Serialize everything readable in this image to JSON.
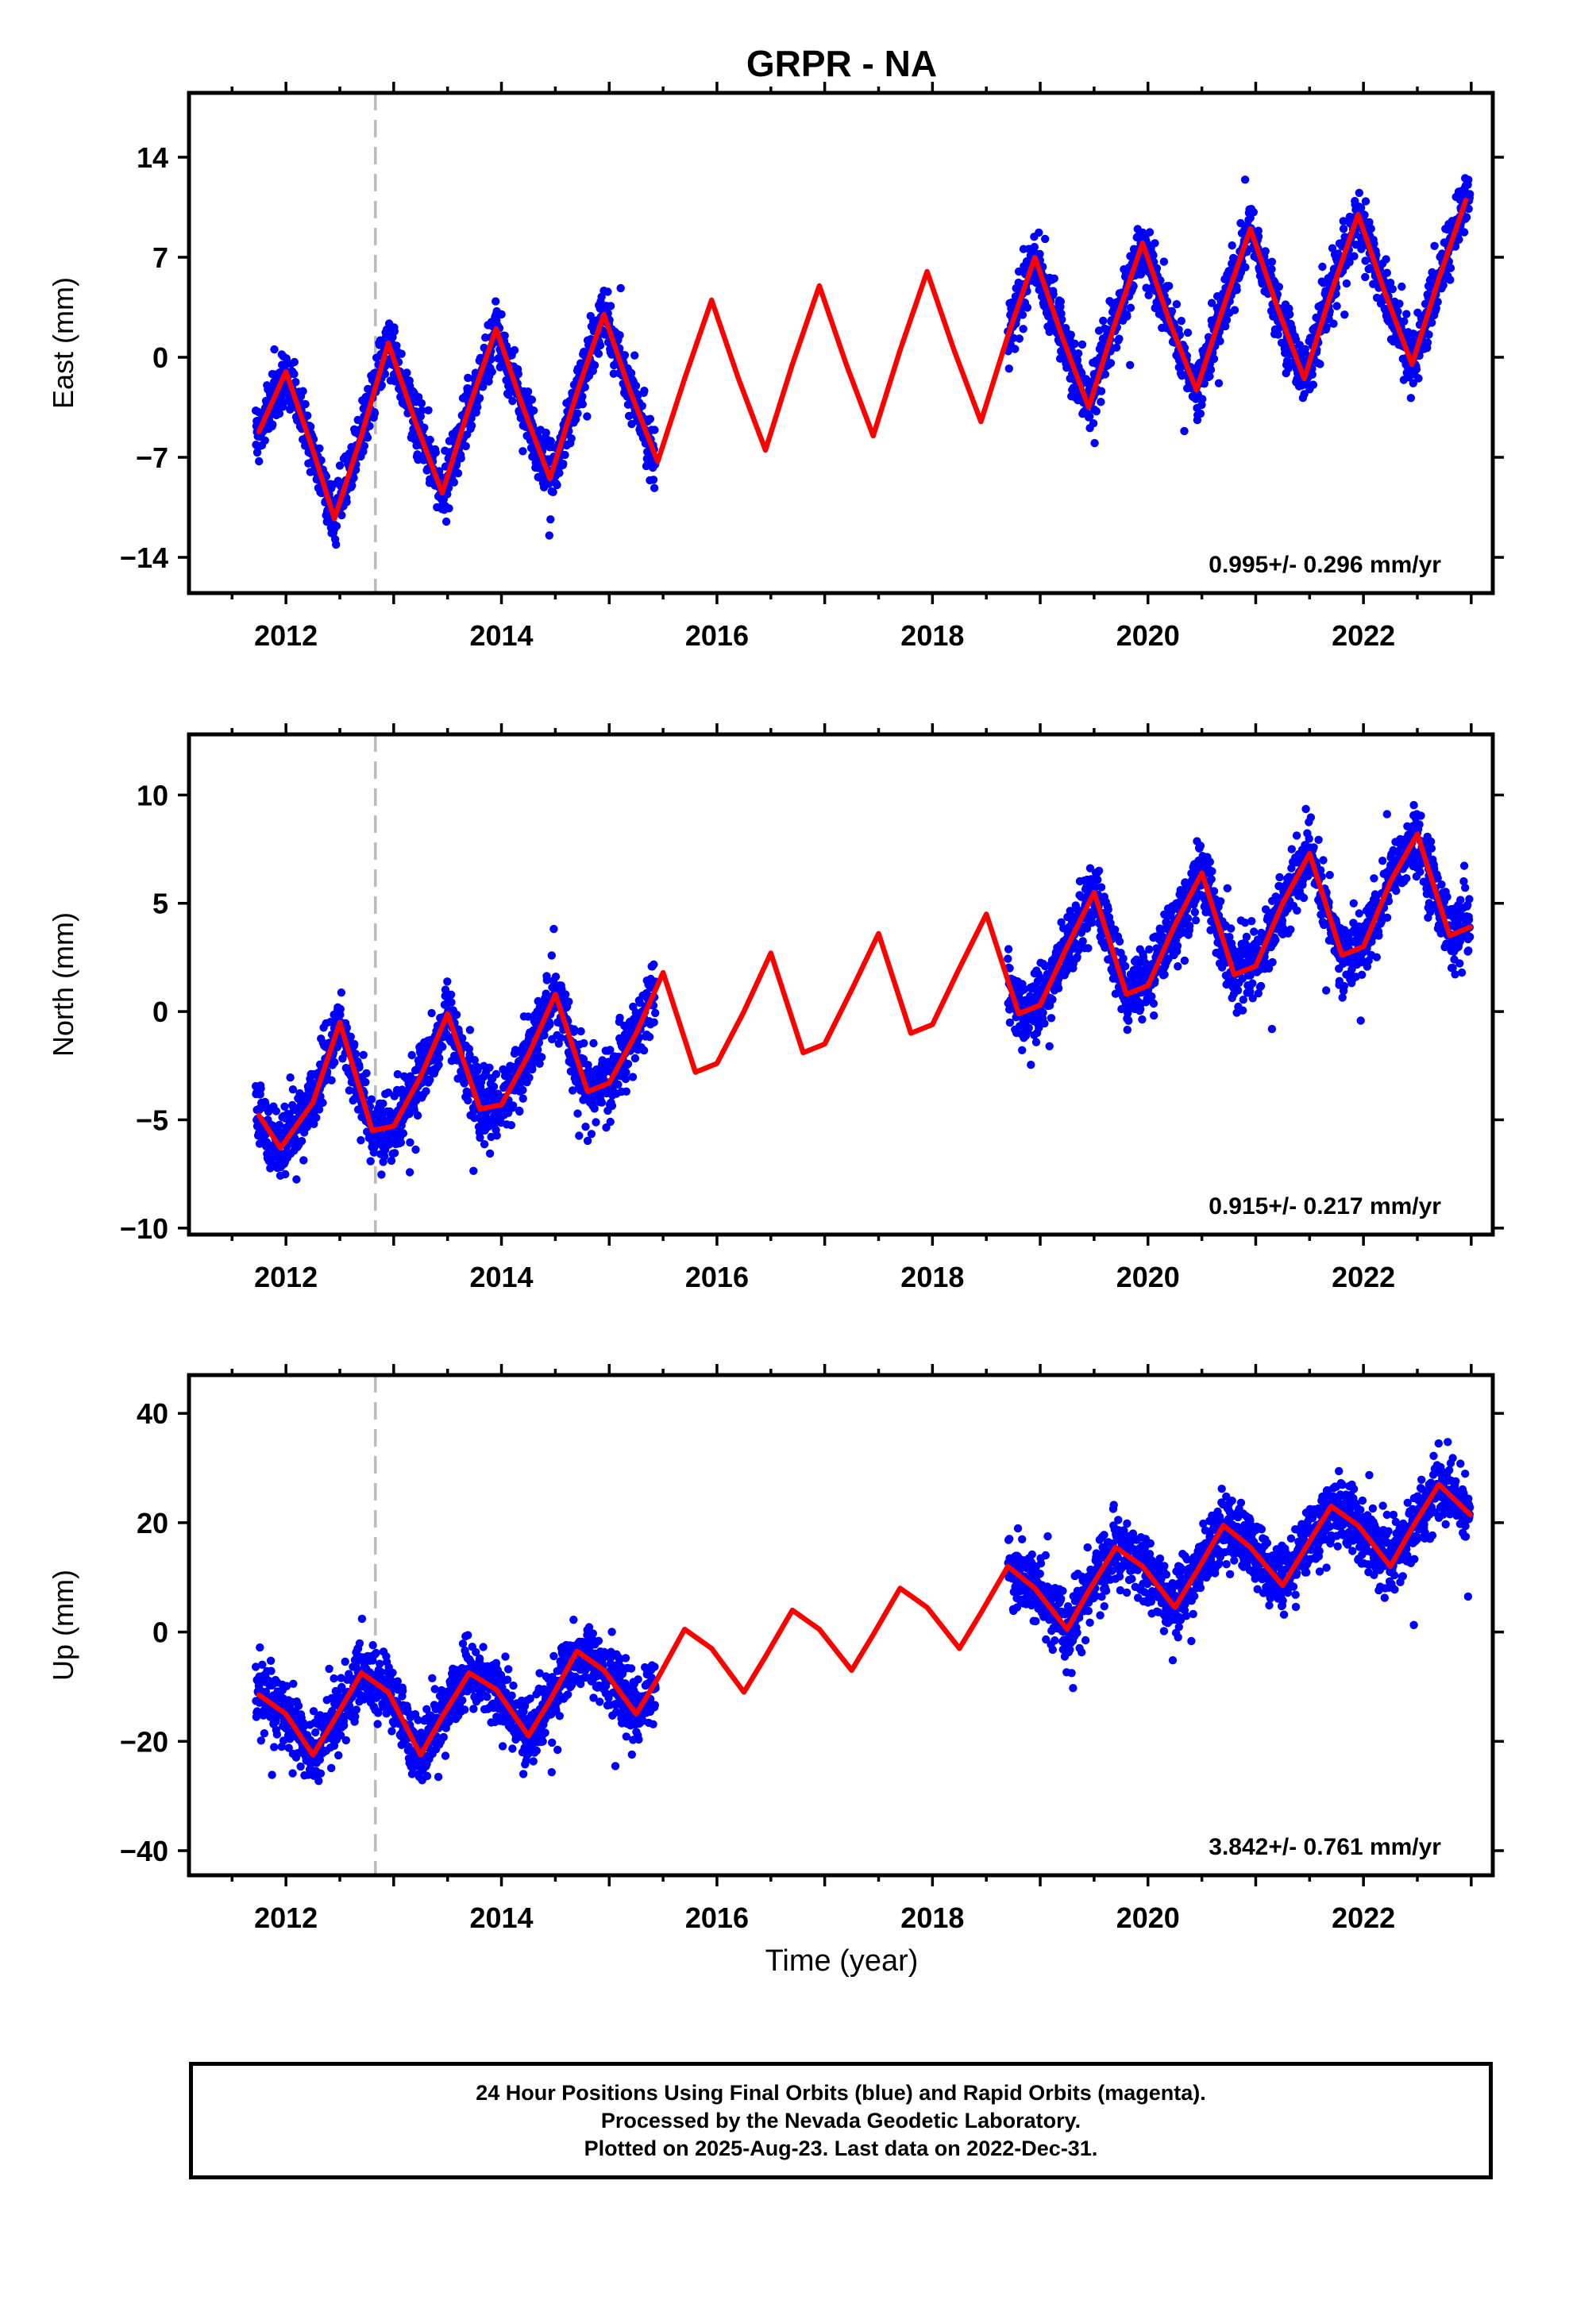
{
  "chart_data": {
    "type": "scatter",
    "title": "GRPR - NA",
    "xlabel": "Time (year)",
    "x_ticks": [
      2012,
      2014,
      2016,
      2018,
      2020,
      2022
    ],
    "x_range": [
      2011.1,
      2023.2
    ],
    "equipment_change_epoch": 2012.83,
    "data_gap": [
      2015.45,
      2018.7
    ],
    "observation_segments": [
      [
        2011.72,
        2015.43
      ],
      [
        2018.7,
        2022.99
      ]
    ],
    "colors": {
      "observations": "#0000ff",
      "model": "#ff0000",
      "equipment_change": "#bbbbbb"
    },
    "panels": [
      {
        "name": "east",
        "ylabel": "East (mm)",
        "y_ticks": [
          -14,
          -7,
          0,
          7,
          14
        ],
        "y_range": [
          -16.5,
          18.5
        ],
        "rate_label": "0.995+/- 0.296 mm/yr",
        "model_curve": {
          "x": [
            2011.75,
            2012.0,
            2012.25,
            2012.45,
            2012.7,
            2012.95,
            2013.2,
            2013.45,
            2013.7,
            2013.95,
            2014.2,
            2014.45,
            2014.7,
            2014.95,
            2015.2,
            2015.45,
            2015.7,
            2015.95,
            2016.2,
            2016.45,
            2016.7,
            2016.95,
            2017.2,
            2017.45,
            2017.7,
            2017.95,
            2018.2,
            2018.45,
            2018.7,
            2018.95,
            2019.2,
            2019.45,
            2019.7,
            2019.95,
            2020.2,
            2020.45,
            2020.7,
            2020.95,
            2021.2,
            2021.45,
            2021.7,
            2021.95,
            2022.2,
            2022.45,
            2022.7,
            2022.95
          ],
          "y": [
            -5.2,
            -1.0,
            -6.5,
            -11.3,
            -5.5,
            1.0,
            -4.5,
            -9.5,
            -3.5,
            2.0,
            -3.5,
            -8.5,
            -2.5,
            3.0,
            -2.5,
            -7.3,
            -1.5,
            4.0,
            -1.5,
            -6.5,
            -0.5,
            5.0,
            -0.5,
            -5.5,
            0.5,
            6.0,
            0.5,
            -4.5,
            1.5,
            7.0,
            1.5,
            -3.5,
            2.5,
            8.0,
            2.5,
            -2.3,
            3.5,
            9.0,
            3.5,
            -1.5,
            4.5,
            10.0,
            4.5,
            -0.5,
            5.5,
            11.0
          ]
        },
        "scatter_amplitude": 5.0,
        "scatter_noise": 1.8
      },
      {
        "name": "north",
        "ylabel": "North (mm)",
        "y_ticks": [
          -10,
          -5,
          0,
          5,
          10
        ],
        "y_range": [
          -10.3,
          12.8
        ],
        "rate_label": "0.915+/- 0.217 mm/yr",
        "model_curve": {
          "x": [
            2011.75,
            2011.95,
            2012.25,
            2012.5,
            2012.8,
            2013.0,
            2013.25,
            2013.5,
            2013.8,
            2014.0,
            2014.25,
            2014.5,
            2014.8,
            2015.0,
            2015.25,
            2015.5,
            2015.8,
            2016.0,
            2016.25,
            2016.5,
            2016.8,
            2017.0,
            2017.25,
            2017.5,
            2017.8,
            2018.0,
            2018.25,
            2018.5,
            2018.8,
            2019.0,
            2019.25,
            2019.5,
            2019.8,
            2020.0,
            2020.25,
            2020.5,
            2020.8,
            2021.0,
            2021.25,
            2021.5,
            2021.8,
            2022.0,
            2022.25,
            2022.5,
            2022.8,
            2022.99
          ],
          "y": [
            -4.8,
            -6.3,
            -4.2,
            -0.5,
            -5.5,
            -5.3,
            -3.0,
            -0.1,
            -4.5,
            -4.3,
            -2.0,
            0.8,
            -3.7,
            -3.3,
            -1.0,
            1.8,
            -2.8,
            -2.4,
            0.0,
            2.7,
            -1.9,
            -1.5,
            1.0,
            3.6,
            -1.0,
            -0.6,
            2.0,
            4.5,
            -0.1,
            0.3,
            3.0,
            5.5,
            0.8,
            1.2,
            4.0,
            6.4,
            1.7,
            2.1,
            5.0,
            7.3,
            2.6,
            3.0,
            6.0,
            8.2,
            3.5,
            3.9
          ]
        },
        "scatter_amplitude": 2.5,
        "scatter_noise": 1.4
      },
      {
        "name": "up",
        "ylabel": "Up (mm)",
        "y_ticks": [
          -40,
          -20,
          0,
          20,
          40
        ],
        "y_range": [
          -44.5,
          47
        ],
        "rate_label": "3.842+/- 0.761 mm/yr",
        "model_curve": {
          "x": [
            2011.75,
            2012.0,
            2012.25,
            2012.45,
            2012.7,
            2012.95,
            2013.25,
            2013.45,
            2013.7,
            2013.95,
            2014.25,
            2014.45,
            2014.7,
            2014.95,
            2015.25,
            2015.45,
            2015.7,
            2015.95,
            2016.25,
            2016.45,
            2016.7,
            2016.95,
            2017.25,
            2017.45,
            2017.7,
            2017.95,
            2018.25,
            2018.45,
            2018.7,
            2018.95,
            2019.25,
            2019.45,
            2019.7,
            2019.95,
            2020.25,
            2020.45,
            2020.7,
            2020.95,
            2021.25,
            2021.45,
            2021.7,
            2021.95,
            2022.25,
            2022.45,
            2022.7,
            2022.99
          ],
          "y": [
            -11.5,
            -15.0,
            -22.5,
            -16.0,
            -7.5,
            -11.0,
            -22.5,
            -15.5,
            -7.5,
            -10.5,
            -19.0,
            -12.5,
            -3.5,
            -7.0,
            -15.0,
            -8.5,
            0.5,
            -3.0,
            -11.0,
            -4.5,
            4.0,
            0.5,
            -7.0,
            -0.5,
            8.0,
            4.5,
            -3.0,
            3.5,
            12.0,
            8.0,
            0.5,
            7.5,
            15.5,
            12.0,
            4.5,
            11.0,
            19.5,
            15.5,
            8.5,
            15.0,
            23.0,
            19.5,
            12.0,
            19.0,
            27.0,
            21.5
          ]
        },
        "scatter_amplitude": 8.0,
        "scatter_noise": 5.5
      }
    ]
  },
  "footer": {
    "line1": "24 Hour Positions Using Final Orbits (blue) and Rapid Orbits (magenta).",
    "line2": "Processed by the Nevada Geodetic Laboratory.",
    "line3": "Plotted on 2025-Aug-23. Last data on 2022-Dec-31."
  }
}
